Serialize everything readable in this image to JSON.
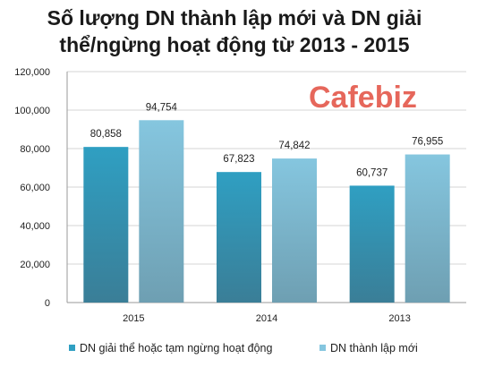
{
  "chart_data": {
    "type": "bar",
    "title_lines": [
      "Số lượng DN thành lập mới và DN giải",
      "thể/ngừng hoạt động từ 2013 - 2015"
    ],
    "categories": [
      "2015",
      "2014",
      "2013"
    ],
    "series": [
      {
        "name": "DN giải thể hoặc  tạm ngừng hoạt động",
        "values": [
          80858,
          67823,
          60737
        ],
        "labels": [
          "80,858",
          "67,823",
          "60,737"
        ],
        "color_top": "#2f9fc2",
        "color_bottom": "#3a7e97"
      },
      {
        "name": "DN thành lập mới",
        "values": [
          94754,
          74842,
          76955
        ],
        "labels": [
          "94,754",
          "74,842",
          "76,955"
        ],
        "color_top": "#85c6df",
        "color_bottom": "#6e9fb2"
      }
    ],
    "ylim": [
      0,
      120000
    ],
    "yticks": [
      0,
      20000,
      40000,
      60000,
      80000,
      100000,
      120000
    ],
    "ytick_labels": [
      "0",
      "20,000",
      "40,000",
      "60,000",
      "80,000",
      "100,000",
      "120,000"
    ],
    "xlabel": "",
    "ylabel": "",
    "grid": true,
    "legend_position": "bottom"
  },
  "watermark": {
    "text": "Cafebiz"
  }
}
